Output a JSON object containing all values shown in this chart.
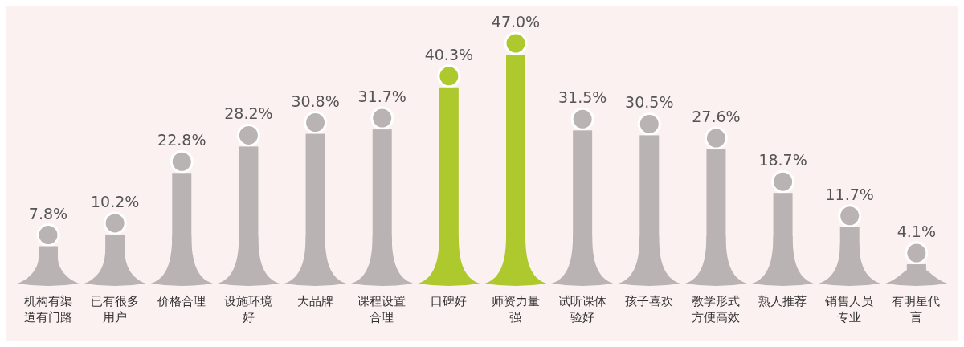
{
  "chart_data": {
    "type": "bar",
    "categories": [
      "机构有渠道有门路",
      "已有很多用户",
      "价格合理",
      "设施环境好",
      "大品牌",
      "课程设置合理",
      "口碑好",
      "师资力量强",
      "试听课体验好",
      "孩子喜欢",
      "教学形式方便高效",
      "熟人推荐",
      "销售人员专业",
      "有明星代言"
    ],
    "values": [
      7.8,
      10.2,
      22.8,
      28.2,
      30.8,
      31.7,
      40.3,
      47.0,
      31.5,
      30.5,
      27.6,
      18.7,
      11.7,
      4.1
    ],
    "value_labels": [
      "7.8%",
      "10.2%",
      "22.8%",
      "28.2%",
      "30.8%",
      "31.7%",
      "40.3%",
      "47.0%",
      "31.5%",
      "30.5%",
      "27.6%",
      "18.7%",
      "11.7%",
      "4.1%"
    ],
    "colors": [
      "#bab3b3",
      "#bab3b3",
      "#bab3b3",
      "#bab3b3",
      "#bab3b3",
      "#bab3b3",
      "#aec92e",
      "#aec92e",
      "#bab3b3",
      "#bab3b3",
      "#bab3b3",
      "#bab3b3",
      "#bab3b3",
      "#bab3b3"
    ]
  }
}
